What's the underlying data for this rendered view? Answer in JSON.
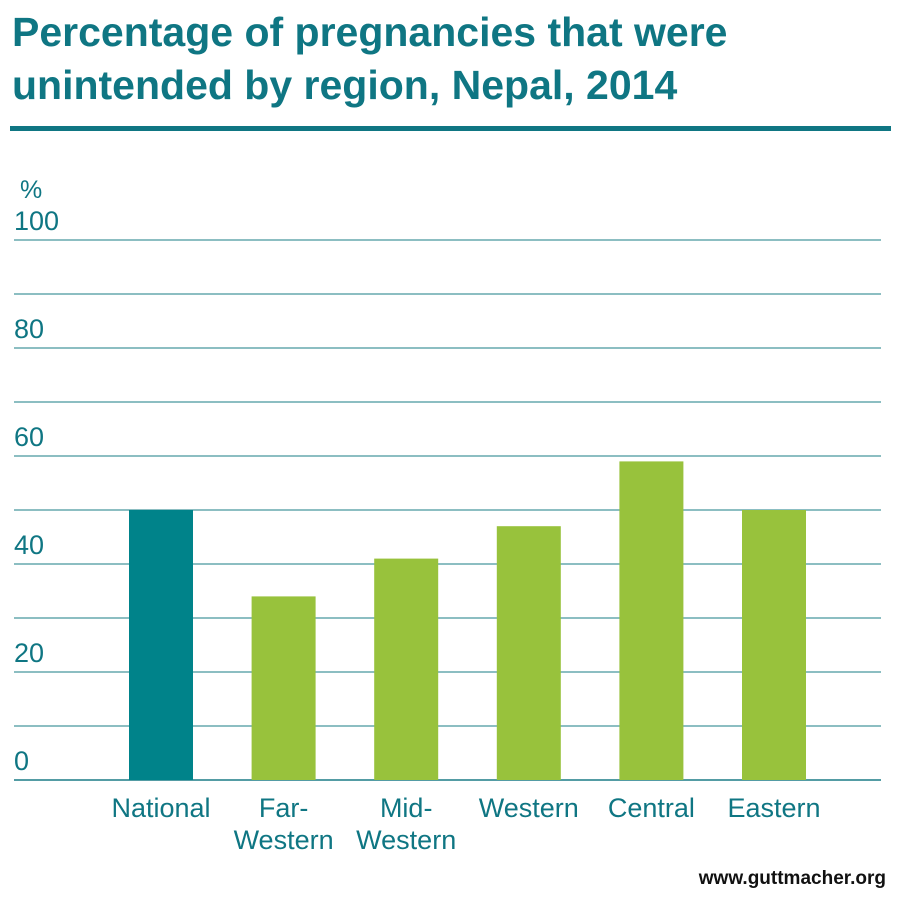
{
  "title": "Percentage of pregnancies that were unintended by region, Nepal, 2014",
  "source": "www.guttmacher.org",
  "colors": {
    "text": "#0f7683",
    "national": "#00838a",
    "region": "#98c23c",
    "grid": "#1a7c86"
  },
  "chart_data": {
    "type": "bar",
    "title": "Percentage of pregnancies that were unintended by region, Nepal, 2014",
    "ylabel": "%",
    "xlabel": "",
    "ylim": [
      0,
      100
    ],
    "yticks": [
      0,
      20,
      40,
      60,
      80,
      100
    ],
    "grid": true,
    "categories": [
      "National",
      "Far-Western",
      "Mid-Western",
      "Western",
      "Central",
      "Eastern"
    ],
    "category_lines": [
      [
        "National"
      ],
      [
        "Far-",
        "Western"
      ],
      [
        "Mid-",
        "Western"
      ],
      [
        "Western"
      ],
      [
        "Central"
      ],
      [
        "Eastern"
      ]
    ],
    "values": [
      50,
      34,
      41,
      47,
      59,
      50
    ],
    "highlight": [
      true,
      false,
      false,
      false,
      false,
      false
    ]
  }
}
